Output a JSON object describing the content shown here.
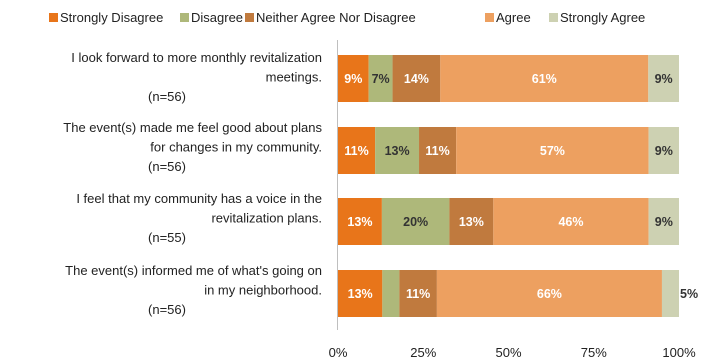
{
  "chart_data": {
    "type": "bar",
    "orientation": "horizontal",
    "stacked": true,
    "percent_stacked": true,
    "legend_position": "top",
    "grid": false,
    "xlim": [
      0,
      100
    ],
    "x_ticks": [
      "0%",
      "25%",
      "50%",
      "75%",
      "100%"
    ],
    "categories": [
      [
        "I look forward to more monthly revitalization",
        "meetings.",
        "(n=56)"
      ],
      [
        "The event(s) made me feel good about plans",
        "for changes in my community.",
        "(n=56)"
      ],
      [
        "I feel that my community has a voice in the",
        "revitalization plans.",
        "(n=55)"
      ],
      [
        "The event(s) informed me of what's going on",
        "in my neighborhood.",
        "(n=56)"
      ]
    ],
    "series": [
      {
        "name": "Strongly Disagree",
        "color": "#E8751A",
        "label_color": "#ffffff",
        "values": [
          9,
          11,
          13,
          13
        ],
        "labels": [
          "9%",
          "11%",
          "13%",
          "13%"
        ]
      },
      {
        "name": "Disagree",
        "color": "#AEB87A",
        "label_color": "#333333",
        "values": [
          7,
          13,
          20,
          5
        ],
        "labels": [
          "7%",
          "13%",
          "20%",
          "5%"
        ]
      },
      {
        "name": "Neither Agree Nor Disagree",
        "color": "#C07A3E",
        "label_color": "#ffffff",
        "values": [
          14,
          11,
          13,
          11
        ],
        "labels": [
          "14%",
          "11%",
          "13%",
          "11%"
        ]
      },
      {
        "name": "Agree",
        "color": "#EDA060",
        "label_color": "#ffffff",
        "values": [
          61,
          57,
          46,
          66
        ],
        "labels": [
          "61%",
          "57%",
          "46%",
          "66%"
        ]
      },
      {
        "name": "Strongly Agree",
        "color": "#CDD1B2",
        "label_color": "#333333",
        "values": [
          9,
          9,
          9,
          5
        ],
        "labels": [
          "9%",
          "9%",
          "9%",
          "5%"
        ]
      }
    ]
  }
}
